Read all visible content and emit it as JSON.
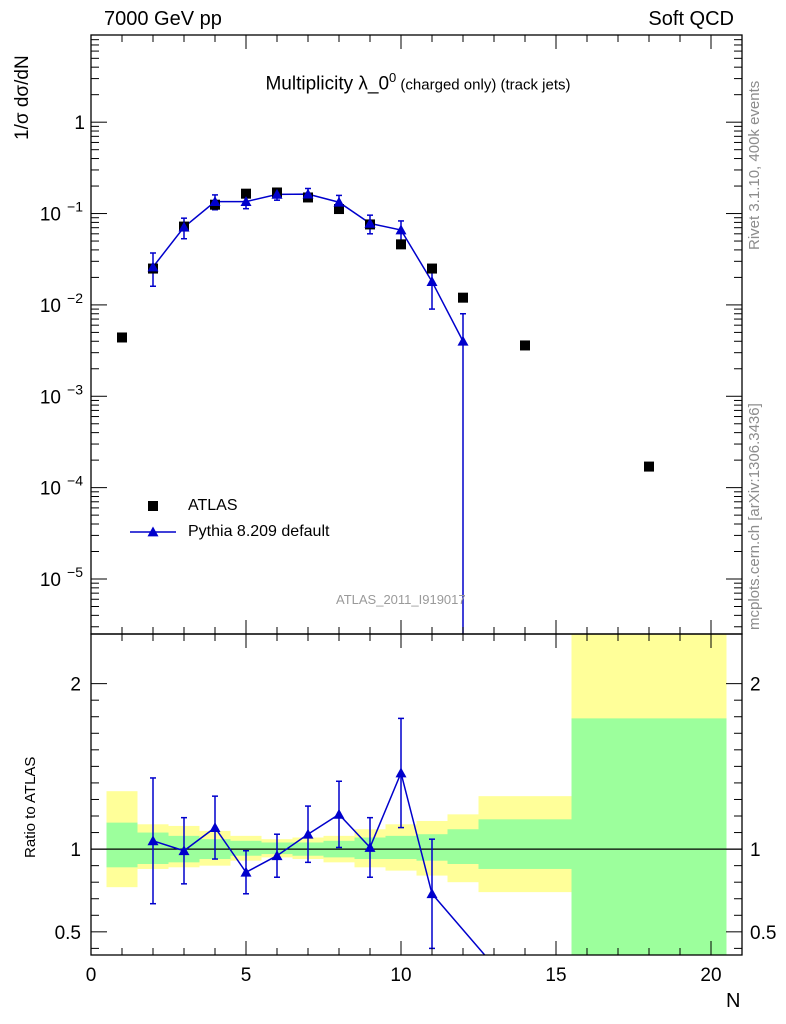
{
  "header": {
    "left": "7000 GeV pp",
    "right": "Soft QCD"
  },
  "side_labels": {
    "rivet": "Rivet 3.1.10,  400k events",
    "site": "mcplots.cern.ch [arXiv:1306.3436]"
  },
  "title": {
    "main": "Multiplicity λ_0",
    "sup": "0",
    "detail": " (charged only) (track jets)"
  },
  "watermark": "ATLAS_2011_I919017",
  "axes": {
    "ylabel_top": "1/σ dσ/dN",
    "ylabel_bottom": "Ratio to ATLAS",
    "xlabel": "N",
    "x_ticks": [
      "0",
      "5",
      "10",
      "15",
      "20"
    ],
    "y_ticks_top": [
      {
        "base": "1",
        "exp": ""
      },
      {
        "base": "10",
        "exp": "−1"
      },
      {
        "base": "10",
        "exp": "−2"
      },
      {
        "base": "10",
        "exp": "−3"
      },
      {
        "base": "10",
        "exp": "−4"
      },
      {
        "base": "10",
        "exp": "−5"
      }
    ],
    "y_ticks_bottom": [
      "0.5",
      "1",
      "2"
    ]
  },
  "legend": {
    "data_label": "ATLAS",
    "mc_label": "Pythia 8.209 default"
  },
  "colors": {
    "data": "#000000",
    "mc": "#0000cc",
    "band_inner": "#9cff9c",
    "band_outer": "#ffff99"
  },
  "chart_data": {
    "type": "scatter",
    "xlim": [
      0,
      21
    ],
    "main": {
      "yscale": "log",
      "ylim": [
        2.5e-06,
        9
      ],
      "series": [
        {
          "name": "ATLAS",
          "x": [
            1,
            2,
            3,
            4,
            5,
            6,
            7,
            8,
            9,
            10,
            11,
            12,
            14,
            18
          ],
          "y": [
            0.0044,
            0.025,
            0.072,
            0.125,
            0.165,
            0.17,
            0.15,
            0.112,
            0.076,
            0.046,
            0.025,
            0.012,
            0.0036,
            0.00017
          ]
        },
        {
          "name": "Pythia 8.209 default",
          "x": [
            2,
            3,
            4,
            5,
            6,
            7,
            8,
            9,
            10,
            11,
            12
          ],
          "y": [
            0.026,
            0.071,
            0.135,
            0.135,
            0.162,
            0.163,
            0.133,
            0.078,
            0.066,
            0.018,
            0.004
          ],
          "err_low": [
            0.01,
            0.018,
            0.025,
            0.022,
            0.022,
            0.025,
            0.025,
            0.018,
            0.017,
            0.009,
            0.004
          ],
          "err_high": [
            0.011,
            0.018,
            0.025,
            0.022,
            0.022,
            0.025,
            0.025,
            0.018,
            0.017,
            0.009,
            0.004
          ]
        }
      ]
    },
    "ratio": {
      "ylim": [
        0.36,
        2.3
      ],
      "reference": 1,
      "mc_x": [
        2,
        3,
        4,
        5,
        6,
        7,
        8,
        9,
        10,
        11,
        12.7
      ],
      "mc_y": [
        1.05,
        0.99,
        1.13,
        0.86,
        0.96,
        1.09,
        1.21,
        1.01,
        1.46,
        0.73,
        0.24
      ],
      "mc_err": [
        0.38,
        0.2,
        0.19,
        0.13,
        0.13,
        0.17,
        0.2,
        0.18,
        0.33,
        0.33,
        0
      ],
      "bands": [
        {
          "x0": 0.5,
          "x1": 1.5,
          "inner": [
            0.89,
            1.16
          ],
          "outer": [
            0.77,
            1.35
          ]
        },
        {
          "x0": 1.5,
          "x1": 2.5,
          "inner": [
            0.91,
            1.1
          ],
          "outer": [
            0.88,
            1.15
          ]
        },
        {
          "x0": 2.5,
          "x1": 3.5,
          "inner": [
            0.92,
            1.08
          ],
          "outer": [
            0.89,
            1.14
          ]
        },
        {
          "x0": 3.5,
          "x1": 4.5,
          "inner": [
            0.94,
            1.06
          ],
          "outer": [
            0.9,
            1.11
          ]
        },
        {
          "x0": 4.5,
          "x1": 5.5,
          "inner": [
            0.96,
            1.05
          ],
          "outer": [
            0.93,
            1.08
          ]
        },
        {
          "x0": 5.5,
          "x1": 6.5,
          "inner": [
            0.97,
            1.04
          ],
          "outer": [
            0.95,
            1.06
          ]
        },
        {
          "x0": 6.5,
          "x1": 7.5,
          "inner": [
            0.96,
            1.04
          ],
          "outer": [
            0.94,
            1.07
          ]
        },
        {
          "x0": 7.5,
          "x1": 8.5,
          "inner": [
            0.95,
            1.05
          ],
          "outer": [
            0.92,
            1.08
          ]
        },
        {
          "x0": 8.5,
          "x1": 9.5,
          "inner": [
            0.94,
            1.07
          ],
          "outer": [
            0.89,
            1.12
          ]
        },
        {
          "x0": 9.5,
          "x1": 10.5,
          "inner": [
            0.94,
            1.08
          ],
          "outer": [
            0.87,
            1.15
          ]
        },
        {
          "x0": 10.5,
          "x1": 11.5,
          "inner": [
            0.93,
            1.09
          ],
          "outer": [
            0.84,
            1.17
          ]
        },
        {
          "x0": 11.5,
          "x1": 12.5,
          "inner": [
            0.91,
            1.12
          ],
          "outer": [
            0.8,
            1.21
          ]
        },
        {
          "x0": 12.5,
          "x1": 15.5,
          "inner": [
            0.88,
            1.18
          ],
          "outer": [
            0.74,
            1.32
          ]
        },
        {
          "x0": 15.5,
          "x1": 20.5,
          "inner": [
            0.36,
            1.79
          ],
          "outer": [
            0.36,
            2.3
          ]
        }
      ]
    }
  }
}
